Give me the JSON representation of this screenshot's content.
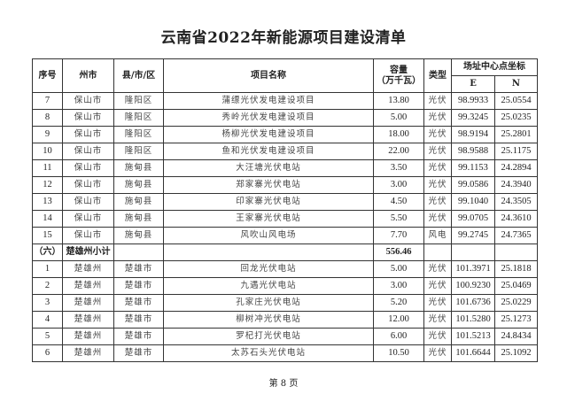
{
  "title": "云南省2022年新能源项目建设清单",
  "header": {
    "seq": "序号",
    "prefecture": "州市",
    "county": "县/市/区",
    "project": "项目名称",
    "capacity": "容量",
    "capacity_unit": "（万千瓦）",
    "type": "类型",
    "coords": "场址中心点坐标",
    "e": "E",
    "n": "N"
  },
  "rows": [
    {
      "seq": "7",
      "pref": "保山市",
      "county": "隆阳区",
      "name": "蒲缥光伏发电建设项目",
      "cap": "13.80",
      "type": "光伏",
      "e": "98.9933",
      "n": "25.0554"
    },
    {
      "seq": "8",
      "pref": "保山市",
      "county": "隆阳区",
      "name": "秀岭光伏发电建设项目",
      "cap": "5.00",
      "type": "光伏",
      "e": "99.3245",
      "n": "25.0235"
    },
    {
      "seq": "9",
      "pref": "保山市",
      "county": "隆阳区",
      "name": "杨柳光伏发电建设项目",
      "cap": "18.00",
      "type": "光伏",
      "e": "98.9194",
      "n": "25.2801"
    },
    {
      "seq": "10",
      "pref": "保山市",
      "county": "隆阳区",
      "name": "鱼和光伏发电建设项目",
      "cap": "22.00",
      "type": "光伏",
      "e": "98.9588",
      "n": "25.1175"
    },
    {
      "seq": "11",
      "pref": "保山市",
      "county": "施甸县",
      "name": "大汪塘光伏电站",
      "cap": "3.50",
      "type": "光伏",
      "e": "99.1153",
      "n": "24.2894"
    },
    {
      "seq": "12",
      "pref": "保山市",
      "county": "施甸县",
      "name": "郑家寨光伏电站",
      "cap": "3.00",
      "type": "光伏",
      "e": "99.0586",
      "n": "24.3940"
    },
    {
      "seq": "13",
      "pref": "保山市",
      "county": "施甸县",
      "name": "印家寨光伏电站",
      "cap": "4.50",
      "type": "光伏",
      "e": "99.1040",
      "n": "24.3505"
    },
    {
      "seq": "14",
      "pref": "保山市",
      "county": "施甸县",
      "name": "王家寨光伏电站",
      "cap": "5.50",
      "type": "光伏",
      "e": "99.0705",
      "n": "24.3610"
    },
    {
      "seq": "15",
      "pref": "保山市",
      "county": "施甸县",
      "name": "风吹山风电场",
      "cap": "7.70",
      "type": "风电",
      "e": "99.2745",
      "n": "24.7365"
    }
  ],
  "subtotal": {
    "seq": "（六）",
    "label": "楚雄州小计",
    "cap": "556.46"
  },
  "rows2": [
    {
      "seq": "1",
      "pref": "楚雄州",
      "county": "楚雄市",
      "name": "回龙光伏电站",
      "cap": "5.00",
      "type": "光伏",
      "e": "101.3971",
      "n": "25.1818"
    },
    {
      "seq": "2",
      "pref": "楚雄州",
      "county": "楚雄市",
      "name": "九遇光伏电站",
      "cap": "3.00",
      "type": "光伏",
      "e": "100.9230",
      "n": "25.0469"
    },
    {
      "seq": "3",
      "pref": "楚雄州",
      "county": "楚雄市",
      "name": "孔家庄光伏电站",
      "cap": "5.20",
      "type": "光伏",
      "e": "101.6736",
      "n": "25.0229"
    },
    {
      "seq": "4",
      "pref": "楚雄州",
      "county": "楚雄市",
      "name": "柳树冲光伏电站",
      "cap": "12.00",
      "type": "光伏",
      "e": "101.5280",
      "n": "25.1273"
    },
    {
      "seq": "5",
      "pref": "楚雄州",
      "county": "楚雄市",
      "name": "罗杞打光伏电站",
      "cap": "6.00",
      "type": "光伏",
      "e": "101.5213",
      "n": "24.8434"
    },
    {
      "seq": "6",
      "pref": "楚雄州",
      "county": "楚雄市",
      "name": "太苏石头光伏电站",
      "cap": "10.50",
      "type": "光伏",
      "e": "101.6644",
      "n": "25.1092"
    }
  ],
  "footer": "第 8 页"
}
